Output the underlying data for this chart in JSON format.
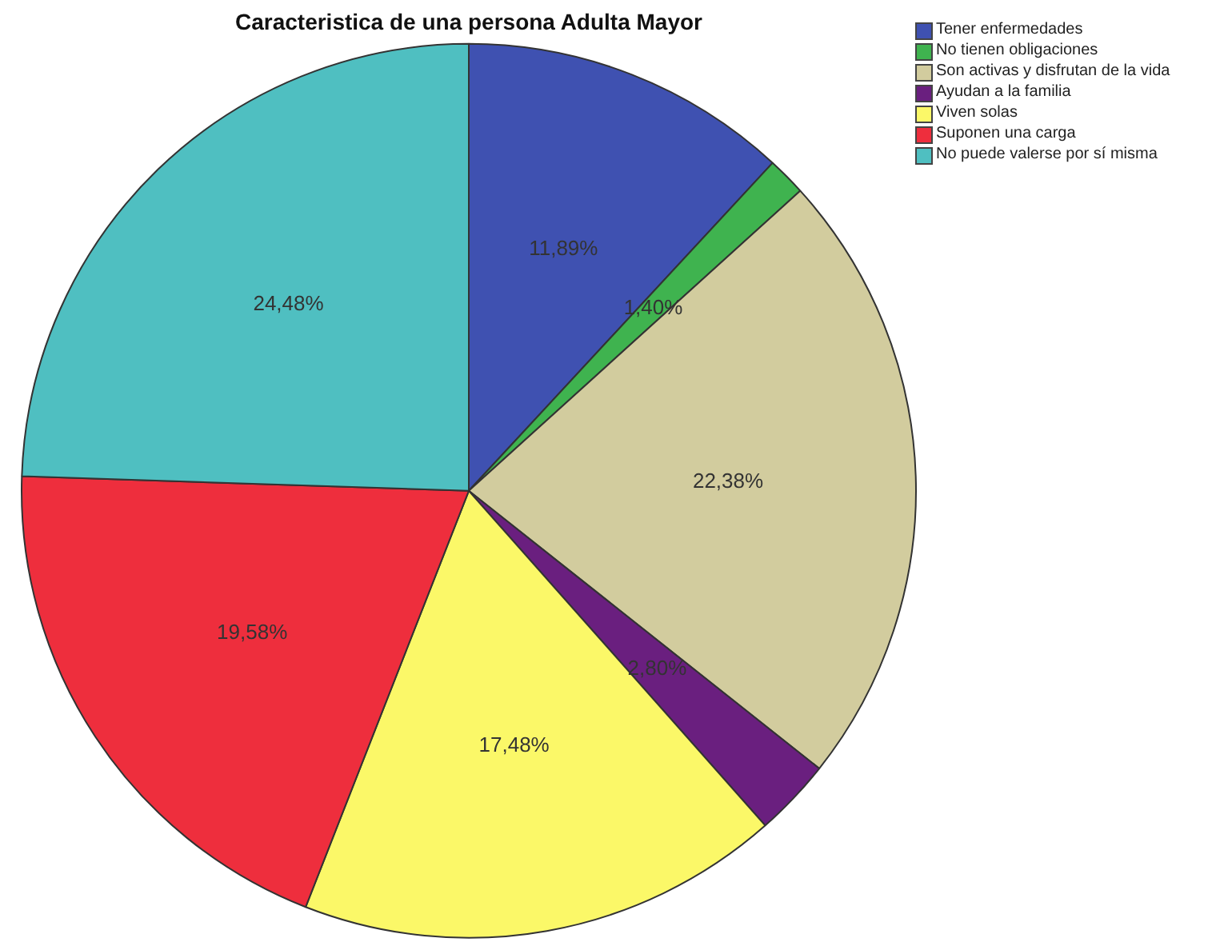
{
  "chart_data": {
    "type": "pie",
    "title": "Caracteristica de una persona Adulta Mayor",
    "categories": [
      "Tener enfermedades",
      "No tienen obligaciones",
      "Son activas y disfrutan de la vida",
      "Ayudan a la familia",
      "Viven solas",
      "Suponen una carga",
      "No puede valerse por sí misma"
    ],
    "values": [
      11.89,
      1.4,
      22.38,
      2.8,
      17.48,
      19.58,
      24.48
    ],
    "colors": [
      "#3f51b1",
      "#3fb34f",
      "#d2cc9e",
      "#6a1f7f",
      "#fbf868",
      "#ee2e3d",
      "#4fbfc1"
    ],
    "value_labels": [
      "11,89%",
      "1,40%",
      "22,38%",
      "2,80%",
      "17,48%",
      "19,58%",
      "24,48%"
    ],
    "legend": "top right"
  }
}
